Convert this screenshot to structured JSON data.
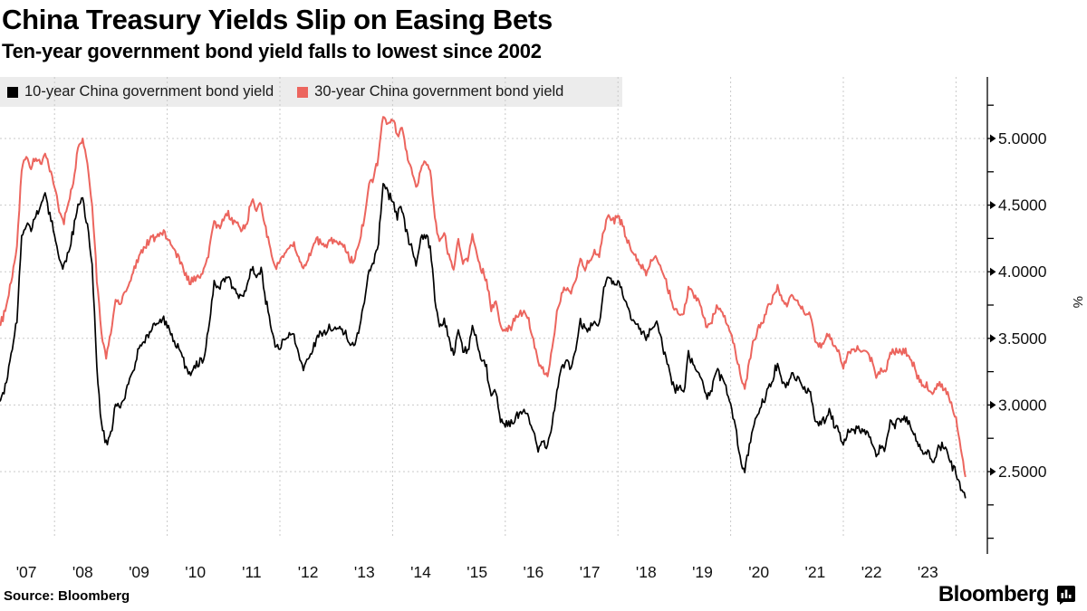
{
  "header": {
    "title": "China Treasury Yields Slip on Easing Bets",
    "subtitle": "Ten-year government bond yield falls to lowest since 2002"
  },
  "legend": {
    "items": [
      {
        "label": "10-year China government bond yield",
        "color": "#000000"
      },
      {
        "label": "30-year China government bond yield",
        "color": "#ec655e"
      }
    ]
  },
  "chart_data": {
    "type": "line",
    "title": "China Treasury Yields Slip on Easing Bets",
    "ylabel": "%",
    "x_start_year": 2007,
    "x_step_months": 1,
    "xlim": [
      2007.0,
      2024.5
    ],
    "ylim": [
      1.9,
      5.45
    ],
    "grid": {
      "horizontal_values": [
        2.5,
        3.0,
        3.5,
        4.0,
        4.5,
        5.0
      ],
      "vertical_years": [
        2008,
        2010,
        2012,
        2014,
        2016,
        2018,
        2020,
        2022,
        2024
      ],
      "style": "dotted"
    },
    "y_ticks": {
      "major": [
        {
          "value": 5.0,
          "label": "5.0000"
        },
        {
          "value": 4.5,
          "label": "4.5000"
        },
        {
          "value": 4.0,
          "label": "4.0000"
        },
        {
          "value": 3.5,
          "label": "3.5000"
        },
        {
          "value": 3.0,
          "label": "3.0000"
        },
        {
          "value": 2.5,
          "label": "2.5000"
        }
      ],
      "minor_values": [
        5.25,
        4.75,
        4.25,
        3.75,
        3.25,
        2.75,
        2.25,
        2.0
      ]
    },
    "x_tick_labels": [
      {
        "year": 2007,
        "label": "'07"
      },
      {
        "year": 2008,
        "label": "'08"
      },
      {
        "year": 2009,
        "label": "'09"
      },
      {
        "year": 2010,
        "label": "'10"
      },
      {
        "year": 2011,
        "label": "'11"
      },
      {
        "year": 2012,
        "label": "'12"
      },
      {
        "year": 2013,
        "label": "'13"
      },
      {
        "year": 2014,
        "label": "'14"
      },
      {
        "year": 2015,
        "label": "'15"
      },
      {
        "year": 2016,
        "label": "'16"
      },
      {
        "year": 2017,
        "label": "'17"
      },
      {
        "year": 2018,
        "label": "'18"
      },
      {
        "year": 2019,
        "label": "'19"
      },
      {
        "year": 2020,
        "label": "'20"
      },
      {
        "year": 2021,
        "label": "'21"
      },
      {
        "year": 2022,
        "label": "'22"
      },
      {
        "year": 2023,
        "label": "'23"
      }
    ],
    "series": [
      {
        "name": "10-year China government bond yield",
        "color": "#000000",
        "monthly_values": [
          3.0,
          3.08,
          3.22,
          3.42,
          3.65,
          4.28,
          4.38,
          4.32,
          4.42,
          4.5,
          4.58,
          4.42,
          4.28,
          4.1,
          4.02,
          4.16,
          4.3,
          4.5,
          4.55,
          4.35,
          4.05,
          3.3,
          2.85,
          2.7,
          2.78,
          3.02,
          2.98,
          3.08,
          3.18,
          3.28,
          3.42,
          3.48,
          3.52,
          3.58,
          3.6,
          3.65,
          3.6,
          3.52,
          3.44,
          3.38,
          3.28,
          3.22,
          3.28,
          3.32,
          3.38,
          3.62,
          3.92,
          3.88,
          3.94,
          3.96,
          3.88,
          3.84,
          3.82,
          3.88,
          4.04,
          3.98,
          4.02,
          3.78,
          3.62,
          3.44,
          3.42,
          3.5,
          3.54,
          3.52,
          3.38,
          3.28,
          3.32,
          3.42,
          3.52,
          3.54,
          3.56,
          3.58,
          3.58,
          3.58,
          3.54,
          3.44,
          3.46,
          3.6,
          3.78,
          4.02,
          4.08,
          4.22,
          4.68,
          4.58,
          4.52,
          4.42,
          4.48,
          4.28,
          4.18,
          4.06,
          4.24,
          4.28,
          4.18,
          3.8,
          3.58,
          3.64,
          3.5,
          3.38,
          3.58,
          3.42,
          3.4,
          3.58,
          3.46,
          3.34,
          3.28,
          3.06,
          3.12,
          2.88,
          2.86,
          2.86,
          2.9,
          2.94,
          2.96,
          2.9,
          2.8,
          2.66,
          2.74,
          2.68,
          2.88,
          3.1,
          3.28,
          3.34,
          3.28,
          3.44,
          3.64,
          3.56,
          3.58,
          3.64,
          3.6,
          3.88,
          3.96,
          3.9,
          3.94,
          3.84,
          3.74,
          3.64,
          3.62,
          3.56,
          3.48,
          3.58,
          3.64,
          3.52,
          3.38,
          3.26,
          3.12,
          3.14,
          3.08,
          3.38,
          3.3,
          3.24,
          3.16,
          3.04,
          3.14,
          3.26,
          3.2,
          3.14,
          3.0,
          2.84,
          2.6,
          2.5,
          2.7,
          2.86,
          2.96,
          3.02,
          3.12,
          3.2,
          3.32,
          3.18,
          3.16,
          3.26,
          3.2,
          3.16,
          3.1,
          3.1,
          2.9,
          2.86,
          2.88,
          2.96,
          2.86,
          2.8,
          2.7,
          2.8,
          2.8,
          2.84,
          2.8,
          2.8,
          2.74,
          2.62,
          2.68,
          2.68,
          2.88,
          2.86,
          2.9,
          2.9,
          2.86,
          2.8,
          2.7,
          2.64,
          2.64,
          2.56,
          2.66,
          2.7,
          2.66,
          2.56,
          2.48,
          2.38,
          2.3
        ]
      },
      {
        "name": "30-year China government bond yield",
        "color": "#ec655e",
        "monthly_values": [
          3.6,
          3.66,
          3.8,
          3.98,
          4.18,
          4.78,
          4.86,
          4.78,
          4.86,
          4.82,
          4.9,
          4.78,
          4.66,
          4.45,
          4.38,
          4.54,
          4.66,
          4.92,
          5.0,
          4.82,
          4.5,
          3.95,
          3.55,
          3.38,
          3.52,
          3.8,
          3.76,
          3.84,
          3.92,
          4.02,
          4.12,
          4.18,
          4.22,
          4.26,
          4.26,
          4.3,
          4.26,
          4.2,
          4.12,
          4.06,
          3.98,
          3.92,
          3.96,
          3.98,
          4.02,
          4.18,
          4.38,
          4.34,
          4.4,
          4.44,
          4.38,
          4.34,
          4.32,
          4.38,
          4.54,
          4.48,
          4.52,
          4.32,
          4.18,
          4.04,
          4.08,
          4.14,
          4.2,
          4.22,
          4.1,
          4.02,
          4.08,
          4.18,
          4.24,
          4.2,
          4.2,
          4.24,
          4.2,
          4.22,
          4.18,
          4.08,
          4.1,
          4.24,
          4.4,
          4.66,
          4.72,
          4.86,
          5.18,
          5.1,
          5.16,
          5.02,
          5.08,
          4.88,
          4.78,
          4.62,
          4.78,
          4.84,
          4.76,
          4.42,
          4.22,
          4.28,
          4.12,
          4.02,
          4.22,
          4.06,
          4.1,
          4.28,
          4.12,
          4.02,
          3.94,
          3.72,
          3.78,
          3.58,
          3.58,
          3.58,
          3.64,
          3.68,
          3.7,
          3.64,
          3.48,
          3.32,
          3.28,
          3.22,
          3.42,
          3.68,
          3.84,
          3.88,
          3.84,
          3.94,
          4.1,
          4.04,
          4.08,
          4.14,
          4.12,
          4.32,
          4.42,
          4.38,
          4.42,
          4.34,
          4.24,
          4.14,
          4.1,
          4.04,
          3.98,
          4.08,
          4.14,
          4.02,
          3.94,
          3.84,
          3.72,
          3.7,
          3.68,
          3.88,
          3.84,
          3.78,
          3.7,
          3.58,
          3.64,
          3.74,
          3.7,
          3.64,
          3.54,
          3.4,
          3.24,
          3.12,
          3.34,
          3.5,
          3.58,
          3.64,
          3.74,
          3.8,
          3.88,
          3.78,
          3.74,
          3.84,
          3.78,
          3.74,
          3.68,
          3.68,
          3.48,
          3.44,
          3.48,
          3.54,
          3.44,
          3.4,
          3.3,
          3.4,
          3.4,
          3.44,
          3.4,
          3.4,
          3.34,
          3.2,
          3.26,
          3.26,
          3.4,
          3.4,
          3.4,
          3.4,
          3.36,
          3.3,
          3.2,
          3.14,
          3.14,
          3.06,
          3.14,
          3.14,
          3.1,
          3.0,
          2.9,
          2.68,
          2.46
        ]
      }
    ]
  },
  "footer": {
    "source": "Source: Bloomberg",
    "brand": "Bloomberg"
  }
}
